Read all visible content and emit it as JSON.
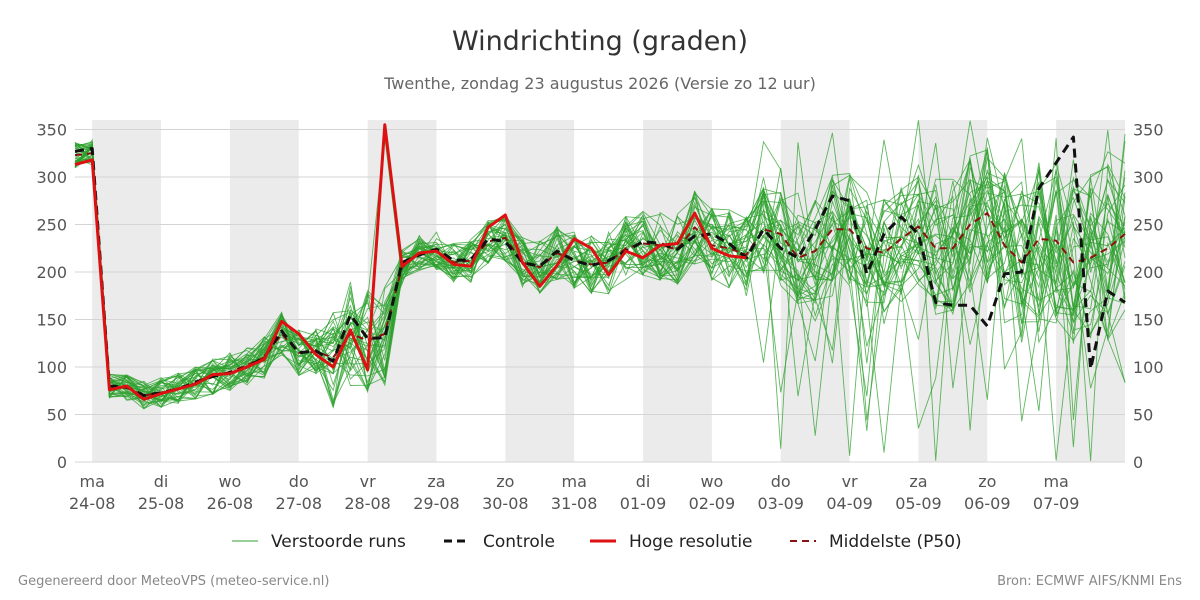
{
  "header": {
    "title": "Windrichting (graden)",
    "subtitle": "Twenthe, zondag 23 augustus 2026 (Versie zo 12 uur)"
  },
  "footer": {
    "left": "Gegenereerd door MeteoVPS (meteo-service.nl)",
    "right": "Bron: ECMWF AIFS/KNMI Ens"
  },
  "legend": [
    {
      "id": "ens",
      "label": "Verstoorde runs"
    },
    {
      "id": "ctrl",
      "label": "Controle"
    },
    {
      "id": "hres",
      "label": "Hoge resolutie"
    },
    {
      "id": "p50",
      "label": "Middelste (P50)"
    }
  ],
  "colors": {
    "ensemble": "#2ca02c",
    "control": "#111111",
    "hres": "#dd1111",
    "median": "#8b1111",
    "weekend_band": "#ebebeb",
    "grid": "#d4d4d4"
  },
  "chart_data": {
    "type": "line",
    "title": "Windrichting (graden)",
    "subtitle": "Twenthe, zondag 23 augustus 2026 (Versie zo 12 uur)",
    "ylim": [
      0,
      360
    ],
    "yticks": [
      0,
      50,
      100,
      150,
      200,
      250,
      300,
      350
    ],
    "y_axis_both_sides": true,
    "grid": true,
    "legend_position": "bottom",
    "x_range_days": [
      -0.25,
      15.0
    ],
    "day_ticks": [
      {
        "day": 0,
        "weekday": "ma",
        "date": "24-08"
      },
      {
        "day": 1,
        "weekday": "di",
        "date": "25-08"
      },
      {
        "day": 2,
        "weekday": "wo",
        "date": "26-08"
      },
      {
        "day": 3,
        "weekday": "do",
        "date": "27-08"
      },
      {
        "day": 4,
        "weekday": "vr",
        "date": "28-08"
      },
      {
        "day": 5,
        "weekday": "za",
        "date": "29-08"
      },
      {
        "day": 6,
        "weekday": "zo",
        "date": "30-08"
      },
      {
        "day": 7,
        "weekday": "ma",
        "date": "31-08"
      },
      {
        "day": 8,
        "weekday": "di",
        "date": "01-09"
      },
      {
        "day": 9,
        "weekday": "wo",
        "date": "02-09"
      },
      {
        "day": 10,
        "weekday": "do",
        "date": "03-09"
      },
      {
        "day": 11,
        "weekday": "vr",
        "date": "04-09"
      },
      {
        "day": 12,
        "weekday": "za",
        "date": "05-09"
      },
      {
        "day": 13,
        "weekday": "zo",
        "date": "06-09"
      },
      {
        "day": 14,
        "weekday": "ma",
        "date": "07-09"
      }
    ],
    "shaded_bands": [
      [
        0,
        1
      ],
      [
        2,
        3
      ],
      [
        4,
        5
      ],
      [
        6,
        7
      ],
      [
        8,
        9
      ],
      [
        10,
        11
      ],
      [
        12,
        13
      ],
      [
        14,
        15
      ]
    ],
    "series": [
      {
        "name": "Hoge resolutie",
        "style": "solid",
        "x": [
          -0.25,
          -0.0,
          0.25,
          0.5,
          0.75,
          1.0,
          1.25,
          1.5,
          1.75,
          2.0,
          2.25,
          2.5,
          2.75,
          3.0,
          3.25,
          3.5,
          3.75,
          4.0,
          4.25,
          4.5,
          4.75,
          5.0,
          5.25,
          5.5,
          5.75,
          6.0,
          6.25,
          6.5,
          6.75,
          7.0,
          7.25,
          7.5,
          7.75,
          8.0,
          8.25,
          8.5,
          8.75,
          9.0,
          9.25,
          9.5
        ],
        "y": [
          313,
          318,
          76,
          80,
          66,
          72,
          77,
          82,
          92,
          93,
          100,
          108,
          148,
          135,
          113,
          100,
          139,
          97,
          355,
          206,
          220,
          222,
          208,
          206,
          247,
          260,
          210,
          185,
          207,
          235,
          225,
          197,
          222,
          215,
          228,
          230,
          262,
          225,
          217,
          215
        ]
      },
      {
        "name": "Controle",
        "style": "dashed",
        "x": [
          -0.25,
          -0.0,
          0.25,
          0.5,
          0.75,
          1.0,
          1.25,
          1.5,
          1.75,
          2.0,
          2.25,
          2.5,
          2.75,
          3.0,
          3.25,
          3.5,
          3.75,
          4.0,
          4.25,
          4.5,
          4.75,
          5.0,
          5.25,
          5.5,
          5.75,
          6.0,
          6.25,
          6.5,
          6.75,
          7.0,
          7.25,
          7.5,
          7.75,
          8.0,
          8.25,
          8.5,
          8.75,
          9.0,
          9.25,
          9.5,
          9.75,
          10.0,
          10.25,
          10.5,
          10.75,
          11.0,
          11.25,
          11.5,
          11.75,
          12.0,
          12.25,
          12.5,
          12.75,
          13.0,
          13.25,
          13.5,
          13.75,
          14.0,
          14.25,
          14.5,
          14.75,
          15.0
        ],
        "y": [
          327,
          330,
          80,
          79,
          70,
          73,
          77,
          84,
          90,
          94,
          100,
          110,
          138,
          115,
          117,
          106,
          155,
          130,
          131,
          210,
          218,
          224,
          212,
          213,
          235,
          232,
          210,
          206,
          222,
          212,
          207,
          212,
          222,
          232,
          230,
          224,
          238,
          240,
          230,
          215,
          245,
          225,
          215,
          245,
          280,
          275,
          198,
          240,
          258,
          240,
          168,
          165,
          165,
          143,
          198,
          200,
          288,
          315,
          342,
          98,
          180,
          168
        ]
      },
      {
        "name": "Middelste (P50)",
        "style": "dashed",
        "x": [
          -0.25,
          -0.0,
          0.25,
          0.5,
          0.75,
          1.0,
          1.25,
          1.5,
          1.75,
          2.0,
          2.25,
          2.5,
          2.75,
          3.0,
          3.25,
          3.5,
          3.75,
          4.0,
          4.25,
          4.5,
          4.75,
          5.0,
          5.25,
          5.5,
          5.75,
          6.0,
          6.25,
          6.5,
          6.75,
          7.0,
          7.25,
          7.5,
          7.75,
          8.0,
          8.25,
          8.5,
          8.75,
          9.0,
          9.25,
          9.5,
          9.75,
          10.0,
          10.25,
          10.5,
          10.75,
          11.0,
          11.25,
          11.5,
          11.75,
          12.0,
          12.25,
          12.5,
          12.75,
          13.0,
          13.25,
          13.5,
          13.75,
          14.0,
          14.25,
          14.5,
          14.75,
          15.0
        ],
        "y": [
          323,
          325,
          80,
          78,
          70,
          73,
          77,
          83,
          90,
          95,
          102,
          110,
          135,
          115,
          116,
          110,
          135,
          128,
          135,
          205,
          220,
          222,
          210,
          212,
          232,
          236,
          210,
          205,
          220,
          212,
          208,
          210,
          225,
          230,
          228,
          224,
          247,
          228,
          225,
          218,
          245,
          240,
          215,
          222,
          245,
          245,
          225,
          220,
          235,
          248,
          225,
          225,
          250,
          262,
          228,
          210,
          235,
          233,
          210,
          215,
          225,
          240
        ]
      }
    ]
  }
}
